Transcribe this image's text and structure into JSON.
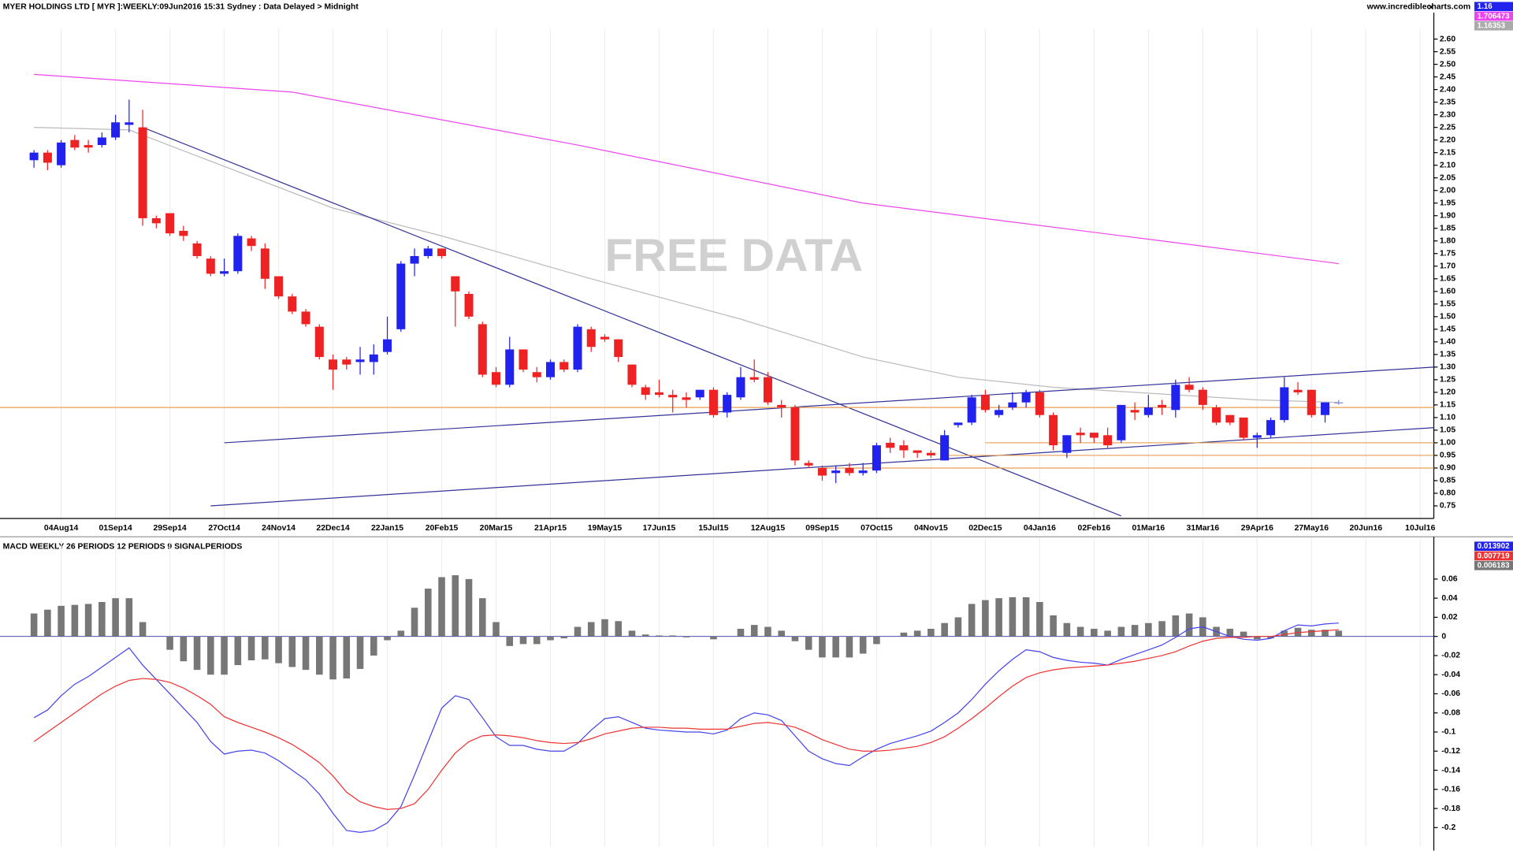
{
  "chart_data": [
    {
      "type": "candlestick",
      "title": "MYER HOLDINGS LTD [ MYR ]:WEEKLY:09Jun2016 15:31 Sydney : Data Delayed > Midnight",
      "website": "www.incrediblecharts.com",
      "watermark": "FREE DATA",
      "price_tags": [
        {
          "text": "1.16",
          "color": "#2222ee"
        },
        {
          "text": "1.706473",
          "color": "#ee44ee"
        },
        {
          "text": "1.16353",
          "color": "#aaaaaa"
        }
      ],
      "up_color": "#2222ee",
      "down_color": "#ee2222",
      "open": [
        2.12,
        2.15,
        2.1,
        2.2,
        2.18,
        2.18,
        2.21,
        2.26,
        2.25,
        1.89,
        1.91,
        1.84,
        1.79,
        1.73,
        1.67,
        1.68,
        1.81,
        1.77,
        1.66,
        1.58,
        1.52,
        1.46,
        1.33,
        1.33,
        1.32,
        1.32,
        1.36,
        1.45,
        1.71,
        1.74,
        1.77,
        1.66,
        1.59,
        1.47,
        1.28,
        1.23,
        1.37,
        1.28,
        1.26,
        1.32,
        1.29,
        1.45,
        1.42,
        1.41,
        1.31,
        1.22,
        1.2,
        1.19,
        1.18,
        1.18,
        1.21,
        1.12,
        1.18,
        1.26,
        1.26,
        1.15,
        1.14,
        0.92,
        0.9,
        0.88,
        0.9,
        0.88,
        0.89,
        1.0,
        0.99,
        0.97,
        0.96,
        0.93,
        1.07,
        1.08,
        1.19,
        1.11,
        1.14,
        1.16,
        1.2,
        1.11,
        0.96,
        1.04,
        1.04,
        1.03,
        1.01,
        1.13,
        1.11,
        1.15,
        1.13,
        1.23,
        1.21,
        1.14,
        1.11,
        1.1,
        1.02,
        1.03,
        1.09,
        1.21,
        1.21,
        1.11,
        1.16
      ],
      "high": [
        2.16,
        2.16,
        2.2,
        2.22,
        2.2,
        2.23,
        2.3,
        2.36,
        2.32,
        1.9,
        1.91,
        1.86,
        1.8,
        1.74,
        1.73,
        1.83,
        1.82,
        1.79,
        1.66,
        1.59,
        1.53,
        1.47,
        1.35,
        1.34,
        1.38,
        1.39,
        1.5,
        1.72,
        1.77,
        1.78,
        1.77,
        1.66,
        1.6,
        1.48,
        1.3,
        1.42,
        1.37,
        1.3,
        1.33,
        1.33,
        1.47,
        1.46,
        1.43,
        1.41,
        1.31,
        1.23,
        1.25,
        1.21,
        1.2,
        1.21,
        1.22,
        1.2,
        1.3,
        1.33,
        1.28,
        1.17,
        1.15,
        0.93,
        0.91,
        0.91,
        0.92,
        0.92,
        1.0,
        1.02,
        1.01,
        0.97,
        0.97,
        1.05,
        1.08,
        1.19,
        1.21,
        1.15,
        1.2,
        1.21,
        1.21,
        1.12,
        1.03,
        1.06,
        1.04,
        1.06,
        1.15,
        1.16,
        1.19,
        1.17,
        1.25,
        1.26,
        1.22,
        1.15,
        1.11,
        1.1,
        1.04,
        1.1,
        1.26,
        1.24,
        1.21,
        1.16,
        1.17
      ],
      "low": [
        2.09,
        2.08,
        2.09,
        2.16,
        2.15,
        2.17,
        2.2,
        2.23,
        1.86,
        1.85,
        1.82,
        1.8,
        1.73,
        1.66,
        1.66,
        1.67,
        1.76,
        1.61,
        1.57,
        1.51,
        1.46,
        1.33,
        1.21,
        1.29,
        1.27,
        1.27,
        1.35,
        1.44,
        1.66,
        1.73,
        1.73,
        1.46,
        1.49,
        1.26,
        1.22,
        1.22,
        1.28,
        1.24,
        1.25,
        1.28,
        1.28,
        1.36,
        1.4,
        1.32,
        1.22,
        1.17,
        1.18,
        1.12,
        1.14,
        1.17,
        1.1,
        1.1,
        1.17,
        1.24,
        1.15,
        1.1,
        0.91,
        0.9,
        0.85,
        0.84,
        0.87,
        0.87,
        0.88,
        0.96,
        0.94,
        0.94,
        0.94,
        0.93,
        1.06,
        1.07,
        1.12,
        1.1,
        1.13,
        1.14,
        1.1,
        0.97,
        0.94,
        1.0,
        1.0,
        0.98,
        1.0,
        1.09,
        1.1,
        1.11,
        1.1,
        1.2,
        1.13,
        1.07,
        1.07,
        1.01,
        0.98,
        1.02,
        1.08,
        1.19,
        1.1,
        1.08,
        1.15
      ],
      "close": [
        2.15,
        2.11,
        2.19,
        2.17,
        2.17,
        2.21,
        2.27,
        2.27,
        1.89,
        1.87,
        1.83,
        1.82,
        1.74,
        1.67,
        1.68,
        1.82,
        1.78,
        1.65,
        1.58,
        1.52,
        1.47,
        1.34,
        1.29,
        1.31,
        1.33,
        1.35,
        1.41,
        1.71,
        1.74,
        1.77,
        1.74,
        1.6,
        1.5,
        1.27,
        1.23,
        1.37,
        1.29,
        1.26,
        1.32,
        1.29,
        1.46,
        1.38,
        1.41,
        1.34,
        1.23,
        1.19,
        1.19,
        1.18,
        1.17,
        1.21,
        1.11,
        1.19,
        1.26,
        1.25,
        1.16,
        1.14,
        0.93,
        0.91,
        0.87,
        0.89,
        0.88,
        0.89,
        0.99,
        0.98,
        0.97,
        0.96,
        0.95,
        1.03,
        1.08,
        1.18,
        1.13,
        1.13,
        1.16,
        1.2,
        1.11,
        0.99,
        1.03,
        1.03,
        1.02,
        0.99,
        1.15,
        1.12,
        1.14,
        1.14,
        1.23,
        1.21,
        1.15,
        1.08,
        1.08,
        1.02,
        1.03,
        1.09,
        1.22,
        1.2,
        1.11,
        1.16,
        1.16
      ],
      "overlays": [
        {
          "color": "#bbbbbb",
          "x": [
            0,
            7,
            22,
            30,
            41,
            52,
            61,
            68,
            75,
            90,
            96
          ],
          "values": [
            2.25,
            2.24,
            1.93,
            1.82,
            1.65,
            1.49,
            1.34,
            1.26,
            1.22,
            1.17,
            1.16
          ]
        },
        {
          "color": "#ee44ee",
          "x": [
            0,
            19,
            40,
            61,
            83,
            96
          ],
          "values": [
            2.46,
            2.39,
            2.18,
            1.95,
            1.8,
            1.71
          ]
        }
      ],
      "trendlines": [
        {
          "color": "#333399",
          "x": [
            8,
            80
          ],
          "values": [
            2.25,
            0.71
          ]
        },
        {
          "color": "#333399",
          "x": [
            14,
            103
          ],
          "values": [
            1.0,
            1.3
          ]
        },
        {
          "color": "#333399",
          "x": [
            13,
            103
          ],
          "values": [
            0.75,
            1.06
          ]
        },
        {
          "color": "#e8a050",
          "x": [
            -2.5,
            103
          ],
          "values": [
            1.14,
            1.14
          ]
        },
        {
          "color": "#e8a050",
          "x": [
            70,
            103
          ],
          "values": [
            1.0,
            1.0
          ]
        },
        {
          "color": "#e8a050",
          "x": [
            67,
            103
          ],
          "values": [
            0.95,
            0.95
          ]
        },
        {
          "color": "#e8a050",
          "x": [
            58,
            103
          ],
          "values": [
            0.9,
            0.9
          ]
        }
      ],
      "xlim": [
        -2.5,
        103
      ],
      "xticks": [
        {
          "value": 2,
          "label": "04Aug14"
        },
        {
          "value": 6,
          "label": "01Sep14"
        },
        {
          "value": 10,
          "label": "29Sep14"
        },
        {
          "value": 14,
          "label": "27Oct14"
        },
        {
          "value": 18,
          "label": "24Nov14"
        },
        {
          "value": 22,
          "label": "22Dec14"
        },
        {
          "value": 26,
          "label": "22Jan15"
        },
        {
          "value": 30,
          "label": "20Feb15"
        },
        {
          "value": 34,
          "label": "20Mar15"
        },
        {
          "value": 38,
          "label": "21Apr15"
        },
        {
          "value": 42,
          "label": "19May15"
        },
        {
          "value": 46,
          "label": "17Jun15"
        },
        {
          "value": 50,
          "label": "15Jul15"
        },
        {
          "value": 54,
          "label": "12Aug15"
        },
        {
          "value": 58,
          "label": "09Sep15"
        },
        {
          "value": 62,
          "label": "07Oct15"
        },
        {
          "value": 66,
          "label": "04Nov15"
        },
        {
          "value": 70,
          "label": "02Dec15"
        },
        {
          "value": 74,
          "label": "04Jan16"
        },
        {
          "value": 78,
          "label": "02Feb16"
        },
        {
          "value": 82,
          "label": "01Mar16"
        },
        {
          "value": 86,
          "label": "31Mar16"
        },
        {
          "value": 90,
          "label": "29Apr16"
        },
        {
          "value": 94,
          "label": "27May16"
        },
        {
          "value": 98,
          "label": "20Jun16"
        },
        {
          "value": 102,
          "label": "10Jul16"
        }
      ],
      "ylim": [
        0.7,
        2.64
      ],
      "yticks": [
        {
          "value": 2.6,
          "label": "2.60"
        },
        2.55,
        {
          "value": 2.5,
          "label": "2.50"
        },
        2.45,
        {
          "value": 2.4,
          "label": "2.40"
        },
        2.35,
        {
          "value": 2.3,
          "label": "2.30"
        },
        2.25,
        {
          "value": 2.2,
          "label": "2.20"
        },
        2.15,
        {
          "value": 2.1,
          "label": "2.10"
        },
        2.05,
        {
          "value": 2,
          "label": "2.00"
        },
        1.95,
        {
          "value": 1.9,
          "label": "1.90"
        },
        1.85,
        {
          "value": 1.8,
          "label": "1.80"
        },
        1.75,
        {
          "value": 1.7,
          "label": "1.70"
        },
        1.65,
        {
          "value": 1.6,
          "label": "1.60"
        },
        1.55,
        {
          "value": 1.5,
          "label": "1.50"
        },
        1.45,
        {
          "value": 1.4,
          "label": "1.40"
        },
        1.35,
        {
          "value": 1.3,
          "label": "1.30"
        },
        1.25,
        {
          "value": 1.2,
          "label": "1.20"
        },
        1.15,
        {
          "value": 1.1,
          "label": "1.10"
        },
        1.05,
        {
          "value": 1,
          "label": "1.00"
        },
        0.95,
        {
          "value": 0.9,
          "label": "0.90"
        },
        0.85,
        {
          "value": 0.8,
          "label": "0.80"
        },
        0.75
      ],
      "grid": true
    },
    {
      "type": "macd",
      "title": "MACD WEEKLY 26 PERIODS 12 PERIODS 9 SIGNALPERIODS",
      "value_tags": [
        {
          "text": "0.013902",
          "color": "#2222ee"
        },
        {
          "text": "0.007719",
          "color": "#ee3333"
        },
        {
          "text": "0.006183",
          "color": "#777777"
        }
      ],
      "series": [
        {
          "kind": "histogram",
          "color": "#777777",
          "values": [
            0.024,
            0.028,
            0.032,
            0.033,
            0.034,
            0.036,
            0.04,
            0.04,
            0.015,
            0,
            -0.014,
            -0.026,
            -0.035,
            -0.04,
            -0.04,
            -0.03,
            -0.025,
            -0.024,
            -0.028,
            -0.032,
            -0.035,
            -0.04,
            -0.045,
            -0.044,
            -0.034,
            -0.02,
            -0.004,
            0.006,
            0.03,
            0.05,
            0.062,
            0.064,
            0.06,
            0.04,
            0.015,
            -0.01,
            -0.008,
            -0.008,
            -0.004,
            -0.002,
            0.01,
            0.015,
            0.018,
            0.016,
            0.006,
            0.002,
            0.001,
            0.001,
            -0.001,
            0,
            -0.003,
            0,
            0.008,
            0.012,
            0.01,
            0.006,
            -0.005,
            -0.014,
            -0.022,
            -0.022,
            -0.022,
            -0.018,
            -0.008,
            0,
            0.004,
            0.006,
            0.008,
            0.014,
            0.02,
            0.034,
            0.038,
            0.04,
            0.041,
            0.041,
            0.036,
            0.022,
            0.014,
            0.01,
            0.008,
            0.006,
            0.01,
            0.012,
            0.014,
            0.016,
            0.022,
            0.024,
            0.02,
            0.01,
            0.008,
            0.005,
            -0.003,
            -0.002,
            0.006,
            0.009,
            0.007,
            0.007,
            0.006
          ]
        },
        {
          "kind": "line",
          "color": "#4444ee",
          "values": [
            -0.085,
            -0.077,
            -0.062,
            -0.05,
            -0.042,
            -0.032,
            -0.022,
            -0.012,
            -0.03,
            -0.045,
            -0.06,
            -0.075,
            -0.09,
            -0.11,
            -0.123,
            -0.12,
            -0.119,
            -0.122,
            -0.13,
            -0.14,
            -0.15,
            -0.165,
            -0.185,
            -0.203,
            -0.205,
            -0.203,
            -0.195,
            -0.178,
            -0.145,
            -0.11,
            -0.075,
            -0.062,
            -0.066,
            -0.085,
            -0.105,
            -0.114,
            -0.114,
            -0.118,
            -0.12,
            -0.12,
            -0.112,
            -0.098,
            -0.086,
            -0.084,
            -0.09,
            -0.096,
            -0.098,
            -0.099,
            -0.1,
            -0.1,
            -0.102,
            -0.098,
            -0.086,
            -0.08,
            -0.082,
            -0.088,
            -0.104,
            -0.12,
            -0.128,
            -0.133,
            -0.135,
            -0.126,
            -0.118,
            -0.112,
            -0.108,
            -0.104,
            -0.099,
            -0.09,
            -0.08,
            -0.066,
            -0.05,
            -0.036,
            -0.024,
            -0.014,
            -0.016,
            -0.022,
            -0.025,
            -0.027,
            -0.028,
            -0.03,
            -0.024,
            -0.019,
            -0.014,
            -0.009,
            -0.001,
            0.008,
            0.01,
            0.005,
            0,
            -0.003,
            -0.004,
            -0.002,
            0.006,
            0.012,
            0.011,
            0.013,
            0.014
          ]
        },
        {
          "kind": "line",
          "color": "#ee3333",
          "values": [
            -0.11,
            -0.1,
            -0.09,
            -0.08,
            -0.07,
            -0.06,
            -0.052,
            -0.046,
            -0.044,
            -0.045,
            -0.048,
            -0.054,
            -0.062,
            -0.071,
            -0.084,
            -0.09,
            -0.095,
            -0.1,
            -0.106,
            -0.113,
            -0.122,
            -0.132,
            -0.146,
            -0.163,
            -0.173,
            -0.178,
            -0.181,
            -0.18,
            -0.175,
            -0.16,
            -0.14,
            -0.122,
            -0.11,
            -0.104,
            -0.103,
            -0.104,
            -0.106,
            -0.109,
            -0.111,
            -0.112,
            -0.111,
            -0.107,
            -0.102,
            -0.099,
            -0.096,
            -0.095,
            -0.095,
            -0.096,
            -0.096,
            -0.097,
            -0.097,
            -0.097,
            -0.094,
            -0.091,
            -0.09,
            -0.092,
            -0.095,
            -0.101,
            -0.108,
            -0.113,
            -0.118,
            -0.12,
            -0.12,
            -0.119,
            -0.117,
            -0.115,
            -0.111,
            -0.105,
            -0.096,
            -0.086,
            -0.075,
            -0.063,
            -0.052,
            -0.043,
            -0.038,
            -0.035,
            -0.033,
            -0.032,
            -0.031,
            -0.03,
            -0.028,
            -0.026,
            -0.023,
            -0.02,
            -0.016,
            -0.01,
            -0.005,
            -0.002,
            -0.001,
            -0.001,
            0,
            0,
            0.002,
            0.004,
            0.005,
            0.006,
            0.007
          ]
        }
      ],
      "xlim": [
        -2.5,
        103
      ],
      "ylim": [
        -0.22,
        0.085
      ],
      "yticks": [
        0.06,
        0.04,
        0.02,
        0,
        -0.02,
        -0.04,
        -0.06,
        -0.08,
        -0.1,
        -0.12,
        -0.14,
        -0.16,
        -0.18,
        -0.2
      ],
      "grid": true
    }
  ]
}
